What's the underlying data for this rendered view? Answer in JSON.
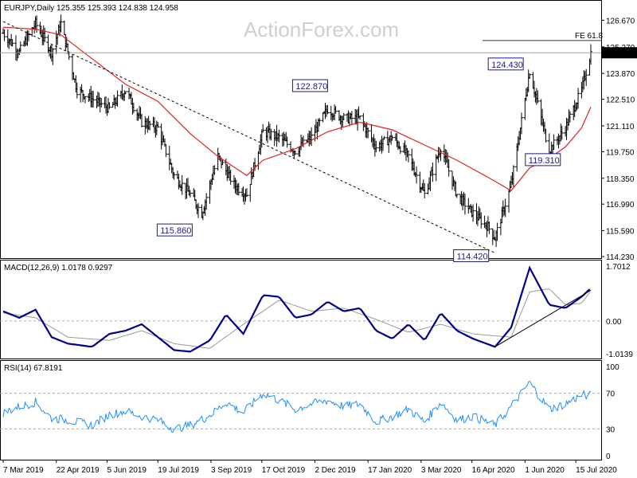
{
  "chart_data": [
    {
      "type": "candlestick",
      "title": "EURJPY,Daily  125.355 125.393 124.838 124.958",
      "ylim": [
        114.23,
        127.4
      ],
      "y_ticks": [
        "126.670",
        "125.270",
        "123.870",
        "122.510",
        "121.110",
        "119.750",
        "118.350",
        "116.990",
        "115.590",
        "114.230"
      ],
      "current_price": "124.958",
      "ema_color": "#e02020",
      "bar_color": "#000000",
      "trendline": {
        "from": [
          "2019-03-07",
          126.6
        ],
        "to": [
          "2020-05-06",
          114.42
        ],
        "style": "dashed"
      },
      "fib_label": "FE 61.8",
      "fib_level": 125.6,
      "key_levels": [
        {
          "label": "115.860",
          "date": "2019-08-26",
          "value": 115.86
        },
        {
          "label": "122.870",
          "date": "2019-12-13",
          "value": 122.87
        },
        {
          "label": "114.420",
          "date": "2020-05-06",
          "value": 114.42
        },
        {
          "label": "124.430",
          "date": "2020-06-05",
          "value": 124.43
        },
        {
          "label": "119.310",
          "date": "2020-06-22",
          "value": 119.31
        }
      ],
      "close_path": [
        [
          "2019-03-07",
          126.0
        ],
        [
          "2019-03-21",
          125.0
        ],
        [
          "2019-04-04",
          126.5
        ],
        [
          "2019-04-18",
          125.0
        ],
        [
          "2019-04-26",
          126.5
        ],
        [
          "2019-05-10",
          123.0
        ],
        [
          "2019-05-24",
          122.5
        ],
        [
          "2019-06-07",
          122.0
        ],
        [
          "2019-06-21",
          123.0
        ],
        [
          "2019-07-05",
          121.3
        ],
        [
          "2019-07-19",
          121.0
        ],
        [
          "2019-08-02",
          118.5
        ],
        [
          "2019-08-16",
          117.5
        ],
        [
          "2019-08-26",
          116.5
        ],
        [
          "2019-09-09",
          119.5
        ],
        [
          "2019-09-23",
          118.0
        ],
        [
          "2019-10-04",
          117.5
        ],
        [
          "2019-10-18",
          120.8
        ],
        [
          "2019-11-01",
          120.5
        ],
        [
          "2019-11-15",
          119.8
        ],
        [
          "2019-11-29",
          120.5
        ],
        [
          "2019-12-13",
          122.0
        ],
        [
          "2019-12-27",
          121.5
        ],
        [
          "2020-01-10",
          121.5
        ],
        [
          "2020-01-24",
          120.0
        ],
        [
          "2020-02-07",
          120.5
        ],
        [
          "2020-02-21",
          119.5
        ],
        [
          "2020-03-06",
          117.5
        ],
        [
          "2020-03-20",
          120.0
        ],
        [
          "2020-04-03",
          117.5
        ],
        [
          "2020-04-17",
          116.5
        ],
        [
          "2020-04-30",
          115.8
        ],
        [
          "2020-05-06",
          115.2
        ],
        [
          "2020-05-20",
          118.0
        ],
        [
          "2020-06-05",
          124.0
        ],
        [
          "2020-06-15",
          121.5
        ],
        [
          "2020-06-22",
          119.8
        ],
        [
          "2020-07-06",
          121.0
        ],
        [
          "2020-07-20",
          123.0
        ],
        [
          "2020-07-28",
          124.96
        ]
      ],
      "ema_path": [
        [
          "2019-03-07",
          126.3
        ],
        [
          "2019-04-04",
          126.2
        ],
        [
          "2019-04-26",
          125.9
        ],
        [
          "2019-05-24",
          124.6
        ],
        [
          "2019-06-21",
          123.3
        ],
        [
          "2019-07-19",
          122.4
        ],
        [
          "2019-08-16",
          120.7
        ],
        [
          "2019-09-09",
          119.5
        ],
        [
          "2019-10-04",
          118.5
        ],
        [
          "2019-10-18",
          119.3
        ],
        [
          "2019-11-15",
          119.9
        ],
        [
          "2019-12-13",
          120.8
        ],
        [
          "2020-01-10",
          121.3
        ],
        [
          "2020-02-07",
          120.9
        ],
        [
          "2020-03-06",
          120.1
        ],
        [
          "2020-04-03",
          119.3
        ],
        [
          "2020-04-30",
          118.4
        ],
        [
          "2020-05-20",
          117.7
        ],
        [
          "2020-06-05",
          118.9
        ],
        [
          "2020-06-22",
          119.4
        ],
        [
          "2020-07-06",
          120.0
        ],
        [
          "2020-07-20",
          121.0
        ],
        [
          "2020-07-28",
          122.1
        ]
      ]
    },
    {
      "type": "line",
      "title": "MACD(12,26,9) 1.0178 0.9297",
      "ylim": [
        -1.0139,
        1.7012
      ],
      "y_ticks": [
        "1.7012",
        "0.00",
        "-1.0139"
      ],
      "zero_label": "0.00",
      "macd_color": "#00008b",
      "signal_color": "#999999",
      "macd": [
        [
          "2019-03-07",
          0.3
        ],
        [
          "2019-03-21",
          0.1
        ],
        [
          "2019-04-04",
          0.35
        ],
        [
          "2019-04-18",
          -0.5
        ],
        [
          "2019-05-02",
          -0.7
        ],
        [
          "2019-05-23",
          -0.8
        ],
        [
          "2019-06-07",
          -0.4
        ],
        [
          "2019-06-21",
          -0.3
        ],
        [
          "2019-07-05",
          -0.1
        ],
        [
          "2019-07-19",
          -0.5
        ],
        [
          "2019-08-02",
          -0.9
        ],
        [
          "2019-08-16",
          -0.95
        ],
        [
          "2019-09-02",
          -0.6
        ],
        [
          "2019-09-16",
          0.2
        ],
        [
          "2019-10-01",
          -0.4
        ],
        [
          "2019-10-18",
          0.8
        ],
        [
          "2019-11-01",
          0.75
        ],
        [
          "2019-11-15",
          0.1
        ],
        [
          "2019-11-29",
          0.2
        ],
        [
          "2019-12-13",
          0.6
        ],
        [
          "2019-12-27",
          0.3
        ],
        [
          "2020-01-10",
          0.4
        ],
        [
          "2020-01-24",
          -0.3
        ],
        [
          "2020-02-07",
          -0.55
        ],
        [
          "2020-02-21",
          -0.1
        ],
        [
          "2020-03-06",
          -0.6
        ],
        [
          "2020-03-20",
          0.25
        ],
        [
          "2020-04-03",
          -0.3
        ],
        [
          "2020-04-17",
          -0.55
        ],
        [
          "2020-05-06",
          -0.8
        ],
        [
          "2020-05-20",
          -0.2
        ],
        [
          "2020-06-05",
          1.65
        ],
        [
          "2020-06-22",
          0.5
        ],
        [
          "2020-07-06",
          0.4
        ],
        [
          "2020-07-20",
          0.75
        ],
        [
          "2020-07-28",
          1.02
        ]
      ],
      "signal": [
        [
          "2019-03-07",
          0.25
        ],
        [
          "2019-04-04",
          0.1
        ],
        [
          "2019-05-02",
          -0.5
        ],
        [
          "2019-06-07",
          -0.6
        ],
        [
          "2019-07-05",
          -0.3
        ],
        [
          "2019-08-02",
          -0.7
        ],
        [
          "2019-09-02",
          -0.85
        ],
        [
          "2019-10-01",
          -0.1
        ],
        [
          "2019-10-18",
          0.3
        ],
        [
          "2019-11-01",
          0.65
        ],
        [
          "2019-11-29",
          0.3
        ],
        [
          "2019-12-27",
          0.4
        ],
        [
          "2020-01-24",
          0.05
        ],
        [
          "2020-02-21",
          -0.35
        ],
        [
          "2020-03-20",
          -0.1
        ],
        [
          "2020-04-17",
          -0.4
        ],
        [
          "2020-05-20",
          -0.5
        ],
        [
          "2020-06-05",
          0.9
        ],
        [
          "2020-06-22",
          1.0
        ],
        [
          "2020-07-06",
          0.5
        ],
        [
          "2020-07-20",
          0.55
        ],
        [
          "2020-07-28",
          0.93
        ]
      ],
      "trendline": {
        "from": [
          "2020-05-06",
          -0.8
        ],
        "to": [
          "2020-07-28",
          0.95
        ]
      }
    },
    {
      "type": "line",
      "title": "RSI(14) 67.8191",
      "ylim": [
        0,
        100
      ],
      "y_ticks": [
        "100",
        "70",
        "30",
        "0"
      ],
      "levels": [
        70,
        30
      ],
      "rsi_color": "#1e90ff",
      "rsi": [
        [
          "2019-03-07",
          48
        ],
        [
          "2019-03-21",
          55
        ],
        [
          "2019-04-04",
          60
        ],
        [
          "2019-04-18",
          42
        ],
        [
          "2019-05-02",
          40
        ],
        [
          "2019-05-23",
          34
        ],
        [
          "2019-06-07",
          46
        ],
        [
          "2019-06-21",
          50
        ],
        [
          "2019-07-05",
          44
        ],
        [
          "2019-07-19",
          40
        ],
        [
          "2019-08-02",
          30
        ],
        [
          "2019-08-16",
          34
        ],
        [
          "2019-09-02",
          45
        ],
        [
          "2019-09-16",
          60
        ],
        [
          "2019-10-01",
          48
        ],
        [
          "2019-10-18",
          70
        ],
        [
          "2019-11-01",
          62
        ],
        [
          "2019-11-15",
          52
        ],
        [
          "2019-11-29",
          58
        ],
        [
          "2019-12-13",
          62
        ],
        [
          "2019-12-27",
          55
        ],
        [
          "2020-01-10",
          58
        ],
        [
          "2020-01-24",
          38
        ],
        [
          "2020-02-07",
          44
        ],
        [
          "2020-02-21",
          52
        ],
        [
          "2020-03-06",
          38
        ],
        [
          "2020-03-20",
          60
        ],
        [
          "2020-04-03",
          40
        ],
        [
          "2020-04-17",
          44
        ],
        [
          "2020-05-06",
          34
        ],
        [
          "2020-05-20",
          55
        ],
        [
          "2020-06-05",
          82
        ],
        [
          "2020-06-22",
          52
        ],
        [
          "2020-07-06",
          58
        ],
        [
          "2020-07-20",
          68
        ],
        [
          "2020-07-28",
          67.8
        ]
      ]
    }
  ],
  "x_ticks": [
    {
      "label": "7 Mar 2019",
      "date": "2019-03-07"
    },
    {
      "label": "22 Apr 2019",
      "date": "2019-04-22"
    },
    {
      "label": "5 Jun 2019",
      "date": "2019-06-05"
    },
    {
      "label": "19 Jul 2019",
      "date": "2019-07-19"
    },
    {
      "label": "3 Sep 2019",
      "date": "2019-09-03"
    },
    {
      "label": "17 Oct 2019",
      "date": "2019-10-17"
    },
    {
      "label": "2 Dec 2019",
      "date": "2019-12-02"
    },
    {
      "label": "17 Jan 2020",
      "date": "2020-01-17"
    },
    {
      "label": "3 Mar 2020",
      "date": "2020-03-03"
    },
    {
      "label": "16 Apr 2020",
      "date": "2020-04-16"
    },
    {
      "label": "1 Jun 2020",
      "date": "2020-06-01"
    },
    {
      "label": "15 Jul 2020",
      "date": "2020-07-15"
    }
  ],
  "watermark": "ActionForex.com"
}
